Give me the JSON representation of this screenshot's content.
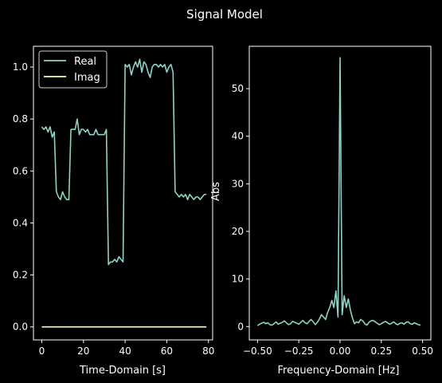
{
  "figure": {
    "title": "Signal Model",
    "background": "#000000",
    "foreground": "#ffffff"
  },
  "chart_data": [
    {
      "type": "line",
      "xlabel": "Time-Domain [s]",
      "ylabel": "",
      "xlim": [
        -4,
        82
      ],
      "ylim": [
        -0.05,
        1.08
      ],
      "xticks": [
        0,
        20,
        40,
        60,
        80
      ],
      "xtick_labels": [
        "0",
        "20",
        "40",
        "60",
        "80"
      ],
      "yticks": [
        0.0,
        0.2,
        0.4,
        0.6,
        0.8,
        1.0
      ],
      "ytick_labels": [
        "0.0",
        "0.2",
        "0.4",
        "0.6",
        "0.8",
        "1.0"
      ],
      "grid": false,
      "legend": {
        "placement": "upper-left",
        "entries": [
          "Real",
          "Imag"
        ]
      },
      "series": [
        {
          "name": "Real",
          "color": "#8dd3c7",
          "x": [
            0,
            1,
            2,
            3,
            4,
            5,
            6,
            7,
            8,
            9,
            10,
            11,
            12,
            13,
            14,
            15,
            16,
            17,
            18,
            19,
            20,
            21,
            22,
            23,
            24,
            25,
            26,
            27,
            28,
            29,
            30,
            31,
            32,
            33,
            34,
            35,
            36,
            37,
            38,
            39,
            40,
            41,
            42,
            43,
            44,
            45,
            46,
            47,
            48,
            49,
            50,
            51,
            52,
            53,
            54,
            55,
            56,
            57,
            58,
            59,
            60,
            61,
            62,
            63,
            64,
            65,
            66,
            67,
            68,
            69,
            70,
            71,
            72,
            73,
            74,
            75,
            76,
            77,
            78,
            79
          ],
          "values": [
            0.77,
            0.76,
            0.77,
            0.75,
            0.77,
            0.73,
            0.75,
            0.52,
            0.5,
            0.49,
            0.52,
            0.5,
            0.49,
            0.49,
            0.76,
            0.76,
            0.76,
            0.8,
            0.74,
            0.76,
            0.76,
            0.75,
            0.76,
            0.74,
            0.74,
            0.74,
            0.76,
            0.74,
            0.74,
            0.74,
            0.74,
            0.76,
            0.24,
            0.25,
            0.25,
            0.26,
            0.25,
            0.27,
            0.26,
            0.25,
            1.01,
            1.0,
            1.01,
            0.97,
            1.0,
            1.02,
            1.0,
            1.03,
            0.98,
            1.02,
            1.01,
            0.98,
            0.96,
            1.0,
            1.01,
            1.01,
            1.0,
            1.01,
            1.0,
            1.01,
            0.98,
            1.0,
            1.01,
            0.98,
            0.52,
            0.51,
            0.5,
            0.51,
            0.5,
            0.51,
            0.49,
            0.51,
            0.5,
            0.49,
            0.5,
            0.5,
            0.49,
            0.5,
            0.51,
            0.51
          ]
        },
        {
          "name": "Imag",
          "color": "#ffffb3",
          "x": [
            0,
            79
          ],
          "values": [
            0.0,
            0.0
          ]
        }
      ]
    },
    {
      "type": "line",
      "xlabel": "Frequency-Domain [Hz]",
      "ylabel": "Abs",
      "xlim": [
        -0.55,
        0.55
      ],
      "ylim": [
        -2.8,
        58.9
      ],
      "xticks": [
        -0.5,
        -0.25,
        0.0,
        0.25,
        0.5
      ],
      "xtick_labels": [
        "−0.50",
        "−0.25",
        "0.00",
        "0.25",
        "0.50"
      ],
      "yticks": [
        0,
        10,
        20,
        30,
        40,
        50
      ],
      "ytick_labels": [
        "0",
        "10",
        "20",
        "30",
        "40",
        "50"
      ],
      "grid": false,
      "series": [
        {
          "color": "#8dd3c7",
          "x": [
            -0.5,
            -0.4875,
            -0.475,
            -0.4625,
            -0.45,
            -0.4375,
            -0.425,
            -0.4125,
            -0.4,
            -0.3875,
            -0.375,
            -0.3625,
            -0.35,
            -0.3375,
            -0.325,
            -0.3125,
            -0.3,
            -0.2875,
            -0.275,
            -0.2625,
            -0.25,
            -0.2375,
            -0.225,
            -0.2125,
            -0.2,
            -0.1875,
            -0.175,
            -0.1625,
            -0.15,
            -0.1375,
            -0.125,
            -0.1125,
            -0.1,
            -0.0875,
            -0.075,
            -0.0625,
            -0.05,
            -0.0375,
            -0.025,
            -0.0125,
            0,
            0.0125,
            0.025,
            0.0375,
            0.05,
            0.0625,
            0.075,
            0.0875,
            0.1,
            0.1125,
            0.125,
            0.1375,
            0.15,
            0.1625,
            0.175,
            0.1875,
            0.2,
            0.2125,
            0.225,
            0.2375,
            0.25,
            0.2625,
            0.275,
            0.2875,
            0.3,
            0.3125,
            0.325,
            0.3375,
            0.35,
            0.3625,
            0.375,
            0.3875,
            0.4,
            0.4125,
            0.425,
            0.4375,
            0.45,
            0.4625,
            0.475,
            0.4875
          ],
          "values": [
            0.2,
            0.5,
            0.7,
            0.9,
            0.6,
            0.8,
            0.4,
            0.3,
            0.6,
            1.0,
            0.5,
            0.7,
            0.9,
            1.2,
            0.8,
            0.4,
            0.6,
            1.1,
            0.9,
            0.7,
            0.5,
            0.9,
            1.3,
            0.8,
            0.6,
            1.1,
            1.5,
            1.0,
            0.4,
            0.9,
            1.6,
            2.5,
            2.0,
            1.5,
            3.0,
            4.0,
            5.5,
            4.0,
            7.5,
            2.0,
            56.5,
            2.5,
            6.5,
            4.0,
            5.8,
            3.5,
            1.8,
            0.6,
            1.0,
            0.8,
            1.5,
            1.2,
            0.6,
            0.3,
            0.9,
            1.2,
            1.3,
            1.0,
            0.7,
            0.4,
            0.6,
            0.9,
            1.1,
            0.8,
            0.5,
            0.7,
            1.0,
            0.6,
            0.4,
            0.7,
            0.8,
            0.5,
            0.9,
            1.0,
            0.6,
            0.5,
            0.8,
            0.6,
            0.4,
            0.3
          ]
        }
      ]
    }
  ]
}
